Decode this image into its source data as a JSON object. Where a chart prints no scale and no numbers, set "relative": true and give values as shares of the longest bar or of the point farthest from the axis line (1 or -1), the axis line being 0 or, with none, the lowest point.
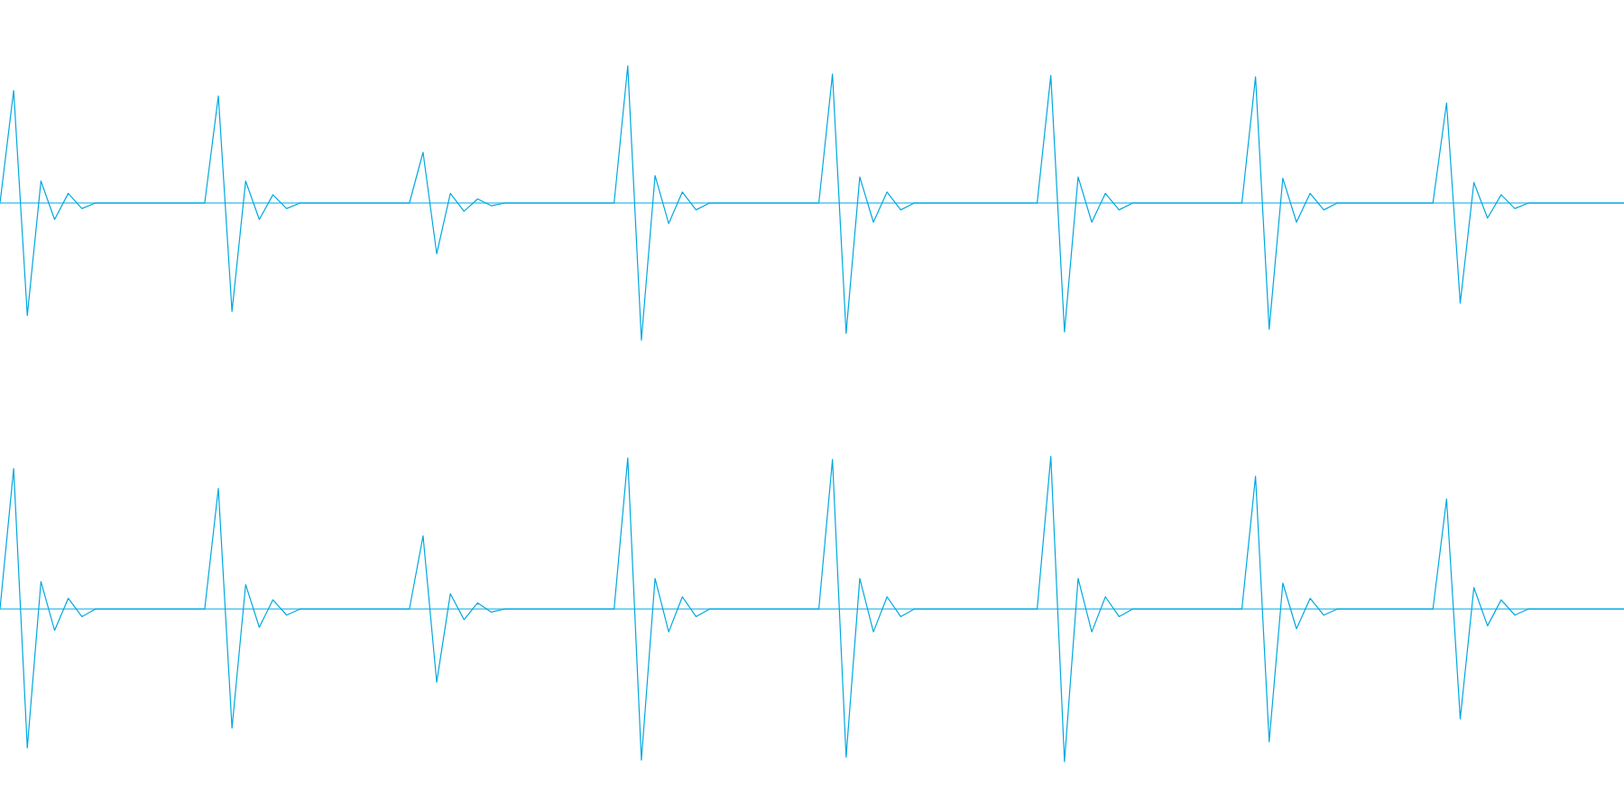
{
  "chart_data": [
    {
      "type": "line",
      "relative": true,
      "color": "#00a8e0",
      "ref_lines": [
        {
          "axis": "y",
          "value": 0,
          "color": "#00a8e0"
        }
      ],
      "categories": [
        null,
        null,
        null,
        null,
        null,
        null,
        null,
        null,
        null,
        null,
        null,
        null,
        null,
        null,
        null,
        null,
        null,
        null,
        null,
        null,
        null,
        null,
        null,
        null,
        null,
        null,
        null,
        null,
        null,
        null,
        null,
        null,
        null,
        null,
        null,
        null,
        null,
        null,
        null,
        null,
        null,
        null,
        null,
        null,
        null,
        null,
        null,
        null,
        null,
        null,
        null,
        null,
        null,
        null,
        null,
        null,
        null,
        null,
        null,
        null,
        null,
        null,
        null,
        null,
        null,
        null,
        null,
        null,
        null,
        null,
        null,
        null,
        null,
        null,
        null,
        null,
        null,
        null,
        null,
        null,
        null,
        null,
        null,
        null,
        null,
        null,
        null,
        null,
        null,
        null,
        null,
        null,
        null,
        null,
        null,
        null,
        null,
        null,
        null,
        null,
        null,
        null,
        null,
        null,
        null,
        null,
        null,
        null,
        null,
        null,
        null,
        null,
        null,
        null,
        null,
        null,
        null,
        null,
        null,
        null
      ],
      "values": [
        0,
        0.82,
        -0.82,
        0.16,
        -0.12,
        0.07,
        -0.04,
        0,
        0,
        0,
        0,
        0,
        0,
        0,
        0,
        0,
        0.78,
        -0.79,
        0.16,
        -0.12,
        0.06,
        -0.04,
        0,
        0,
        0,
        0,
        0,
        0,
        0,
        0,
        0,
        0.37,
        -0.37,
        0.07,
        -0.06,
        0.03,
        -0.02,
        0,
        0,
        0,
        0,
        0,
        0,
        0,
        0,
        0,
        1,
        -1,
        0.2,
        -0.15,
        0.08,
        -0.05,
        0,
        0,
        0,
        0,
        0,
        0,
        0,
        0,
        0,
        0.94,
        -0.95,
        0.19,
        -0.14,
        0.08,
        -0.05,
        0,
        0,
        0,
        0,
        0,
        0,
        0,
        0,
        0,
        0,
        0.93,
        -0.94,
        0.19,
        -0.14,
        0.07,
        -0.05,
        0,
        0,
        0,
        0,
        0,
        0,
        0,
        0,
        0,
        0.92,
        -0.92,
        0.18,
        -0.14,
        0.07,
        -0.05,
        0,
        0,
        0,
        0,
        0,
        0,
        0,
        0,
        0.73,
        -0.73,
        0.15,
        -0.11,
        0.06,
        -0.04,
        0,
        0,
        0,
        0,
        0,
        0,
        0,
        0
      ]
    },
    {
      "type": "line",
      "relative": true,
      "color": "#00a8e0",
      "ref_lines": [
        {
          "axis": "y",
          "value": 0,
          "color": "#00a8e0"
        }
      ],
      "categories": [
        null,
        null,
        null,
        null,
        null,
        null,
        null,
        null,
        null,
        null,
        null,
        null,
        null,
        null,
        null,
        null,
        null,
        null,
        null,
        null,
        null,
        null,
        null,
        null,
        null,
        null,
        null,
        null,
        null,
        null,
        null,
        null,
        null,
        null,
        null,
        null,
        null,
        null,
        null,
        null,
        null,
        null,
        null,
        null,
        null,
        null,
        null,
        null,
        null,
        null,
        null,
        null,
        null,
        null,
        null,
        null,
        null,
        null,
        null,
        null,
        null,
        null,
        null,
        null,
        null,
        null,
        null,
        null,
        null,
        null,
        null,
        null,
        null,
        null,
        null,
        null,
        null,
        null,
        null,
        null,
        null,
        null,
        null,
        null,
        null,
        null,
        null,
        null,
        null,
        null,
        null,
        null,
        null,
        null,
        null,
        null,
        null,
        null,
        null,
        null,
        null,
        null,
        null,
        null,
        null,
        null,
        null,
        null,
        null,
        null,
        null,
        null,
        null,
        null,
        null,
        null,
        null,
        null,
        null,
        null
      ],
      "values": [
        0,
        0.92,
        -0.91,
        0.18,
        -0.14,
        0.07,
        -0.05,
        0,
        0,
        0,
        0,
        0,
        0,
        0,
        0,
        0,
        0.79,
        -0.78,
        0.16,
        -0.12,
        0.06,
        -0.04,
        0,
        0,
        0,
        0,
        0,
        0,
        0,
        0,
        0,
        0.48,
        -0.48,
        0.1,
        -0.07,
        0.04,
        -0.02,
        0,
        0,
        0,
        0,
        0,
        0,
        0,
        0,
        0,
        0.99,
        -0.99,
        0.2,
        -0.15,
        0.08,
        -0.05,
        0,
        0,
        0,
        0,
        0,
        0,
        0,
        0,
        0,
        0.98,
        -0.97,
        0.2,
        -0.15,
        0.08,
        -0.05,
        0,
        0,
        0,
        0,
        0,
        0,
        0,
        0,
        0,
        0,
        1,
        -1,
        0.2,
        -0.15,
        0.08,
        -0.05,
        0,
        0,
        0,
        0,
        0,
        0,
        0,
        0,
        0,
        0.87,
        -0.87,
        0.17,
        -0.13,
        0.07,
        -0.04,
        0,
        0,
        0,
        0,
        0,
        0,
        0,
        0,
        0.72,
        -0.72,
        0.14,
        -0.11,
        0.06,
        -0.04,
        0,
        0,
        0,
        0,
        0,
        0,
        0,
        0
      ]
    }
  ]
}
